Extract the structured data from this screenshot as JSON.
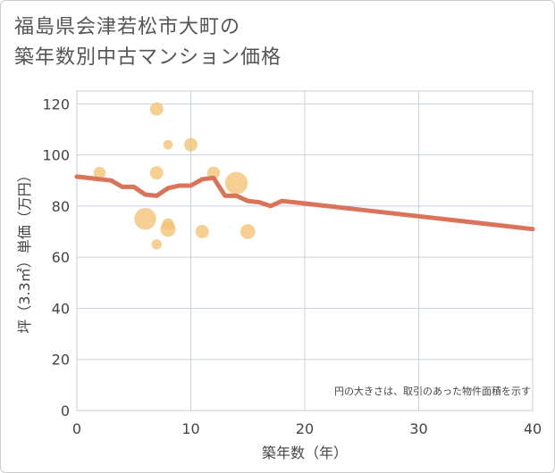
{
  "title_line1": "福島県会津若松市大町の",
  "title_line2": "築年数別中古マンション価格",
  "chart_data": {
    "type": "scatter",
    "xlabel": "築年数（年）",
    "ylabel": "坪（3.3㎡）単価（万円）",
    "xlim": [
      0,
      40
    ],
    "ylim": [
      0,
      125
    ],
    "xticks": [
      0,
      10,
      20,
      30,
      40
    ],
    "yticks": [
      0,
      20,
      40,
      60,
      80,
      100,
      120
    ],
    "grid": true,
    "note": "円の大きさは、取引のあった物件面積を示す",
    "bubble_color": "#f3c06e",
    "line_color": "#d9735a",
    "points": [
      {
        "x": 2,
        "y": 93,
        "size": 1.0
      },
      {
        "x": 7,
        "y": 118,
        "size": 1.2
      },
      {
        "x": 7,
        "y": 93,
        "size": 1.2
      },
      {
        "x": 7,
        "y": 65,
        "size": 0.7
      },
      {
        "x": 6,
        "y": 75,
        "size": 3.2
      },
      {
        "x": 8,
        "y": 104,
        "size": 0.6
      },
      {
        "x": 8,
        "y": 73,
        "size": 0.9
      },
      {
        "x": 8,
        "y": 71,
        "size": 1.6
      },
      {
        "x": 10,
        "y": 104,
        "size": 1.2
      },
      {
        "x": 11,
        "y": 70,
        "size": 1.2
      },
      {
        "x": 12,
        "y": 93,
        "size": 1.1
      },
      {
        "x": 14,
        "y": 89,
        "size": 3.4
      },
      {
        "x": 15,
        "y": 70,
        "size": 1.5
      }
    ],
    "trend": {
      "x": [
        0,
        1,
        2,
        3,
        4,
        5,
        6,
        7,
        8,
        9,
        10,
        11,
        12,
        13,
        14,
        15,
        16,
        17,
        18,
        20,
        25,
        30,
        35,
        40
      ],
      "y": [
        91.5,
        91,
        90.5,
        90,
        87.5,
        87.5,
        84.5,
        84,
        87,
        88,
        88,
        90.5,
        91,
        84,
        84,
        82,
        81.5,
        80,
        82,
        81,
        78.5,
        76,
        73.5,
        71
      ]
    }
  }
}
